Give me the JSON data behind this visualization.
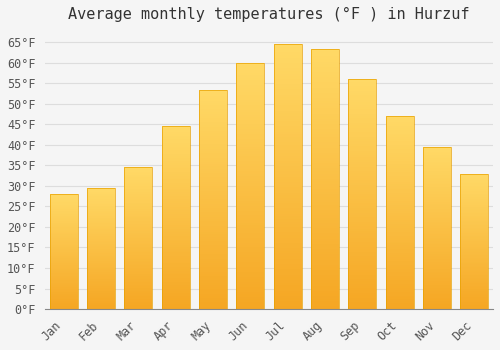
{
  "title": "Average monthly temperatures (°F ) in Hurzuf",
  "months": [
    "Jan",
    "Feb",
    "Mar",
    "Apr",
    "May",
    "Jun",
    "Jul",
    "Aug",
    "Sep",
    "Oct",
    "Nov",
    "Dec"
  ],
  "values": [
    28,
    29.5,
    34.5,
    44.5,
    53.5,
    60,
    64.5,
    63.5,
    56,
    47,
    39.5,
    33
  ],
  "bar_color_bottom": "#F5A623",
  "bar_color_top": "#FFD966",
  "bar_edge_color": "#E8A000",
  "background_color": "#F5F5F5",
  "plot_bg_color": "#F5F5F5",
  "grid_color": "#DDDDDD",
  "ylim": [
    0,
    68
  ],
  "yticks": [
    0,
    5,
    10,
    15,
    20,
    25,
    30,
    35,
    40,
    45,
    50,
    55,
    60,
    65
  ],
  "title_fontsize": 11,
  "tick_fontsize": 8.5,
  "font_family": "monospace"
}
